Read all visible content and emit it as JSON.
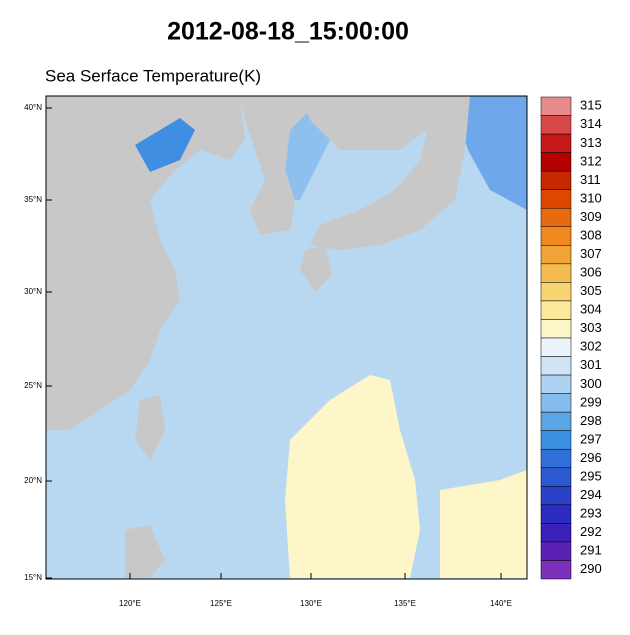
{
  "title": "2012-08-18_15:00:00",
  "subtitle": "Sea Serface Temperature(K)",
  "map": {
    "lat_ticks": [
      "40°N",
      "35°N",
      "30°N",
      "25°N",
      "20°N",
      "15°N"
    ],
    "lon_ticks": [
      "120°E",
      "125°E",
      "130°E",
      "135°E",
      "140°E"
    ]
  },
  "colorbar": {
    "ticks": [
      315,
      314,
      313,
      312,
      311,
      310,
      309,
      308,
      307,
      306,
      305,
      304,
      303,
      302,
      301,
      300,
      299,
      298,
      297,
      296,
      295,
      294,
      293,
      292,
      291,
      290
    ],
    "colors": [
      "#e88a8a",
      "#d84a4a",
      "#c81818",
      "#b40000",
      "#c82800",
      "#dc4800",
      "#e86a10",
      "#f08a20",
      "#f2a438",
      "#f4bc50",
      "#f8d470",
      "#fbe89a",
      "#fdf6c8",
      "#eaf2fa",
      "#cfe4f6",
      "#aed3f2",
      "#84bdec",
      "#5aa6e6",
      "#3a8fe0",
      "#3070d8",
      "#2c58d0",
      "#2a40c8",
      "#2c2cc0",
      "#3a20b8",
      "#5a20b4",
      "#7a30b8"
    ]
  }
}
